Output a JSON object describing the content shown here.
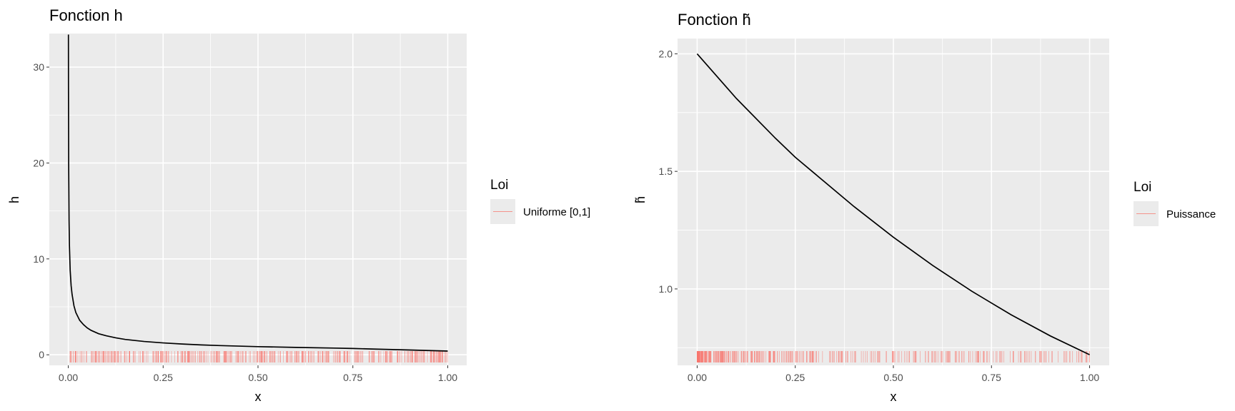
{
  "chart_data": [
    {
      "type": "line",
      "title": "Fonction h",
      "xlabel": "x",
      "ylabel": "h",
      "xlim": [
        -0.05,
        1.05
      ],
      "ylim": [
        -1.1,
        33.5
      ],
      "x_ticks": [
        0,
        0.25,
        0.5,
        0.75,
        1
      ],
      "x_tick_labels": [
        "0.00",
        "0.25",
        "0.50",
        "0.75",
        "1.00"
      ],
      "y_ticks": [
        0,
        10,
        20,
        30
      ],
      "y_tick_labels": [
        "0",
        "10",
        "20",
        "30"
      ],
      "grid": true,
      "series": [
        {
          "type": "line",
          "color": "#000000",
          "x": [
            0.00035,
            0.0005,
            0.001,
            0.002,
            0.003,
            0.005,
            0.0075,
            0.01,
            0.015,
            0.02,
            0.03,
            0.04,
            0.05,
            0.06,
            0.08,
            0.1,
            0.125,
            0.15,
            0.2,
            0.25,
            0.3,
            0.35,
            0.4,
            0.5,
            0.6,
            0.7,
            0.75,
            0.8,
            0.9,
            1.0
          ],
          "y": [
            33.4,
            28,
            19.8,
            14.0,
            11.4,
            8.8,
            7.2,
            6.3,
            5.1,
            4.4,
            3.6,
            3.15,
            2.8,
            2.55,
            2.2,
            1.98,
            1.77,
            1.6,
            1.39,
            1.24,
            1.12,
            1.03,
            0.96,
            0.85,
            0.77,
            0.7,
            0.66,
            0.6,
            0.5,
            0.39
          ]
        }
      ],
      "rug": {
        "color": "#F8766D",
        "distribution": "uniform",
        "density": "uniform across [0,1]"
      },
      "legend": {
        "title": "Loi",
        "position": "right",
        "entries": [
          {
            "label": "Uniforme [0,1]",
            "color": "#F8766D"
          }
        ]
      }
    },
    {
      "type": "line",
      "title": "Fonction h̃",
      "xlabel": "x",
      "ylabel": "h̃",
      "xlim": [
        -0.05,
        1.05
      ],
      "ylim": [
        0.675,
        2.065
      ],
      "x_ticks": [
        0,
        0.25,
        0.5,
        0.75,
        1
      ],
      "x_tick_labels": [
        "0.00",
        "0.25",
        "0.50",
        "0.75",
        "1.00"
      ],
      "y_ticks": [
        1.0,
        1.5,
        2.0
      ],
      "y_tick_labels": [
        "1.0",
        "1.5",
        "2.0"
      ],
      "grid": true,
      "series": [
        {
          "type": "line",
          "color": "#000000",
          "x": [
            0,
            0.1,
            0.2,
            0.25,
            0.3,
            0.4,
            0.5,
            0.6,
            0.7,
            0.75,
            0.8,
            0.9,
            1.0
          ],
          "y": [
            2.0,
            1.81,
            1.64,
            1.56,
            1.49,
            1.35,
            1.22,
            1.1,
            0.99,
            0.94,
            0.89,
            0.8,
            0.72
          ]
        }
      ],
      "rug": {
        "color": "#F8766D",
        "distribution": "power",
        "density": "concentrated near 0, sparser toward 1"
      },
      "legend": {
        "title": "Loi",
        "position": "right",
        "entries": [
          {
            "label": "Puissance",
            "color": "#F8766D"
          }
        ]
      }
    }
  ]
}
